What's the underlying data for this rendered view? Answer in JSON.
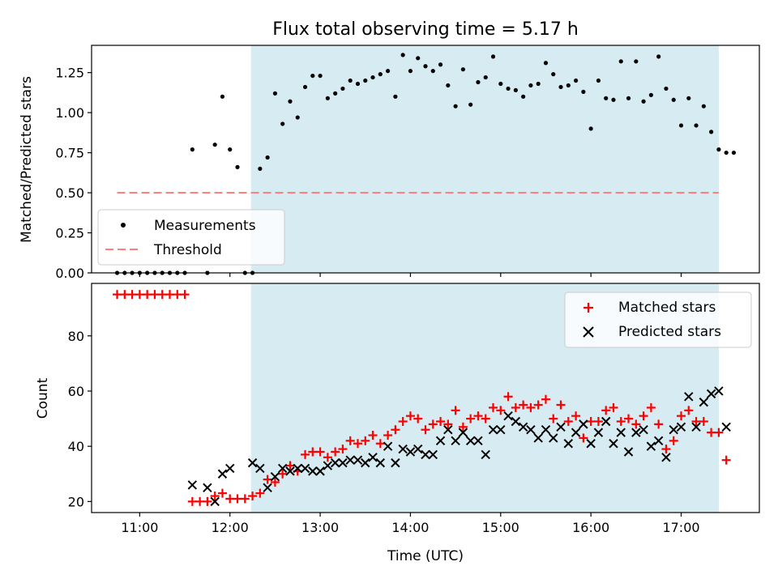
{
  "chart_data": [
    {
      "type": "scatter",
      "title": "Flux total observing time = 5.17 h",
      "xlabel": "",
      "ylabel": "Matched/Predicted stars",
      "xlim": [
        "10:28",
        "17:52"
      ],
      "ylim": [
        0,
        1.42
      ],
      "yticks": [
        0,
        0.25,
        0.5,
        0.75,
        1.0,
        1.25
      ],
      "ytick_labels": [
        "0.00",
        "0.25",
        "0.50",
        "0.75",
        "1.00",
        "1.25"
      ],
      "shaded_region": {
        "start": "12:14",
        "end": "17:25",
        "color": "#add8e6"
      },
      "legend": {
        "position": "lower-left",
        "entries": [
          "Measurements",
          "Threshold"
        ]
      },
      "series": [
        {
          "name": "Measurements",
          "color": "#000000",
          "marker": "dot",
          "points": [
            [
              "10:45",
              0
            ],
            [
              "10:50",
              0
            ],
            [
              "10:55",
              0
            ],
            [
              "11:00",
              0
            ],
            [
              "11:05",
              0
            ],
            [
              "11:10",
              0
            ],
            [
              "11:15",
              0
            ],
            [
              "11:20",
              0
            ],
            [
              "11:25",
              0
            ],
            [
              "11:30",
              0
            ],
            [
              "11:35",
              0.77
            ],
            [
              "11:45",
              0
            ],
            [
              "11:50",
              0.8
            ],
            [
              "11:55",
              1.1
            ],
            [
              "12:00",
              0.77
            ],
            [
              "12:05",
              0.66
            ],
            [
              "12:10",
              0
            ],
            [
              "12:15",
              0
            ],
            [
              "12:20",
              0.65
            ],
            [
              "12:25",
              0.72
            ],
            [
              "12:30",
              1.12
            ],
            [
              "12:35",
              0.93
            ],
            [
              "12:40",
              1.07
            ],
            [
              "12:45",
              0.97
            ],
            [
              "12:50",
              1.16
            ],
            [
              "12:55",
              1.23
            ],
            [
              "13:00",
              1.23
            ],
            [
              "13:05",
              1.09
            ],
            [
              "13:10",
              1.12
            ],
            [
              "13:15",
              1.15
            ],
            [
              "13:20",
              1.2
            ],
            [
              "13:25",
              1.18
            ],
            [
              "13:30",
              1.2
            ],
            [
              "13:35",
              1.22
            ],
            [
              "13:40",
              1.24
            ],
            [
              "13:45",
              1.26
            ],
            [
              "13:50",
              1.1
            ],
            [
              "13:55",
              1.36
            ],
            [
              "14:00",
              1.26
            ],
            [
              "14:05",
              1.34
            ],
            [
              "14:10",
              1.29
            ],
            [
              "14:15",
              1.26
            ],
            [
              "14:20",
              1.3
            ],
            [
              "14:25",
              1.17
            ],
            [
              "14:30",
              1.04
            ],
            [
              "14:35",
              1.27
            ],
            [
              "14:40",
              1.05
            ],
            [
              "14:45",
              1.19
            ],
            [
              "14:50",
              1.22
            ],
            [
              "14:55",
              1.35
            ],
            [
              "15:00",
              1.18
            ],
            [
              "15:05",
              1.15
            ],
            [
              "15:10",
              1.14
            ],
            [
              "15:15",
              1.1
            ],
            [
              "15:20",
              1.17
            ],
            [
              "15:25",
              1.18
            ],
            [
              "15:30",
              1.31
            ],
            [
              "15:35",
              1.24
            ],
            [
              "15:40",
              1.16
            ],
            [
              "15:45",
              1.17
            ],
            [
              "15:50",
              1.2
            ],
            [
              "15:55",
              1.13
            ],
            [
              "16:00",
              0.9
            ],
            [
              "16:05",
              1.2
            ],
            [
              "16:10",
              1.09
            ],
            [
              "16:15",
              1.08
            ],
            [
              "16:20",
              1.32
            ],
            [
              "16:25",
              1.09
            ],
            [
              "16:30",
              1.32
            ],
            [
              "16:35",
              1.07
            ],
            [
              "16:40",
              1.11
            ],
            [
              "16:45",
              1.35
            ],
            [
              "16:50",
              1.15
            ],
            [
              "16:55",
              1.08
            ],
            [
              "17:00",
              0.92
            ],
            [
              "17:05",
              1.09
            ],
            [
              "17:10",
              0.92
            ],
            [
              "17:15",
              1.04
            ],
            [
              "17:20",
              0.88
            ],
            [
              "17:25",
              0.77
            ],
            [
              "17:30",
              0.75
            ],
            [
              "17:35",
              0.75
            ]
          ]
        },
        {
          "name": "Threshold",
          "color": "#ff7f7f",
          "line_style": "dashed",
          "x": [
            "10:45",
            "17:25"
          ],
          "y": [
            0.5,
            0.5
          ]
        }
      ]
    },
    {
      "type": "scatter",
      "title": "",
      "xlabel": "Time (UTC)",
      "ylabel": "Count",
      "xlim": [
        "10:28",
        "17:52"
      ],
      "ylim": [
        16,
        99
      ],
      "yticks": [
        20,
        40,
        60,
        80
      ],
      "ytick_labels": [
        "20",
        "40",
        "60",
        "80"
      ],
      "xticks": [
        "11:00",
        "12:00",
        "13:00",
        "14:00",
        "15:00",
        "16:00",
        "17:00"
      ],
      "shaded_region": {
        "start": "12:14",
        "end": "17:25",
        "color": "#add8e6"
      },
      "legend": {
        "position": "top-right",
        "entries": [
          "Matched stars",
          "Predicted stars"
        ]
      },
      "series": [
        {
          "name": "Matched stars",
          "color": "#ff0000",
          "marker": "plus",
          "points": [
            [
              "10:45",
              95
            ],
            [
              "10:50",
              95
            ],
            [
              "10:55",
              95
            ],
            [
              "11:00",
              95
            ],
            [
              "11:05",
              95
            ],
            [
              "11:10",
              95
            ],
            [
              "11:15",
              95
            ],
            [
              "11:20",
              95
            ],
            [
              "11:25",
              95
            ],
            [
              "11:30",
              95
            ],
            [
              "11:35",
              20
            ],
            [
              "11:40",
              20
            ],
            [
              "11:45",
              20
            ],
            [
              "11:50",
              22
            ],
            [
              "11:55",
              23
            ],
            [
              "12:00",
              21
            ],
            [
              "12:05",
              21
            ],
            [
              "12:10",
              21
            ],
            [
              "12:15",
              22
            ],
            [
              "12:20",
              23
            ],
            [
              "12:25",
              28
            ],
            [
              "12:30",
              27
            ],
            [
              "12:35",
              30
            ],
            [
              "12:40",
              33
            ],
            [
              "12:45",
              31
            ],
            [
              "12:50",
              37
            ],
            [
              "12:55",
              38
            ],
            [
              "13:00",
              38
            ],
            [
              "13:05",
              36
            ],
            [
              "13:10",
              38
            ],
            [
              "13:15",
              39
            ],
            [
              "13:20",
              42
            ],
            [
              "13:25",
              41
            ],
            [
              "13:30",
              42
            ],
            [
              "13:35",
              44
            ],
            [
              "13:40",
              41
            ],
            [
              "13:45",
              44
            ],
            [
              "13:50",
              46
            ],
            [
              "13:55",
              49
            ],
            [
              "14:00",
              51
            ],
            [
              "14:05",
              50
            ],
            [
              "14:10",
              46
            ],
            [
              "14:15",
              48
            ],
            [
              "14:20",
              49
            ],
            [
              "14:25",
              48
            ],
            [
              "14:30",
              53
            ],
            [
              "14:35",
              47
            ],
            [
              "14:40",
              50
            ],
            [
              "14:45",
              51
            ],
            [
              "14:50",
              50
            ],
            [
              "14:55",
              54
            ],
            [
              "15:00",
              53
            ],
            [
              "15:05",
              58
            ],
            [
              "15:10",
              54
            ],
            [
              "15:15",
              55
            ],
            [
              "15:20",
              54
            ],
            [
              "15:25",
              55
            ],
            [
              "15:30",
              57
            ],
            [
              "15:35",
              50
            ],
            [
              "15:40",
              55
            ],
            [
              "15:45",
              49
            ],
            [
              "15:50",
              51
            ],
            [
              "15:55",
              43
            ],
            [
              "16:00",
              49
            ],
            [
              "16:05",
              49
            ],
            [
              "16:10",
              53
            ],
            [
              "16:15",
              54
            ],
            [
              "16:20",
              49
            ],
            [
              "16:25",
              50
            ],
            [
              "16:30",
              48
            ],
            [
              "16:35",
              51
            ],
            [
              "16:40",
              54
            ],
            [
              "16:45",
              48
            ],
            [
              "16:50",
              39
            ],
            [
              "16:55",
              42
            ],
            [
              "17:00",
              51
            ],
            [
              "17:05",
              53
            ],
            [
              "17:10",
              49
            ],
            [
              "17:15",
              49
            ],
            [
              "17:20",
              45
            ],
            [
              "17:25",
              45
            ],
            [
              "17:30",
              35
            ]
          ]
        },
        {
          "name": "Predicted stars",
          "color": "#000000",
          "marker": "x",
          "points": [
            [
              "11:35",
              26
            ],
            [
              "11:45",
              25
            ],
            [
              "11:50",
              20
            ],
            [
              "11:55",
              30
            ],
            [
              "12:00",
              32
            ],
            [
              "12:15",
              34
            ],
            [
              "12:20",
              32
            ],
            [
              "12:25",
              25
            ],
            [
              "12:30",
              29
            ],
            [
              "12:35",
              32
            ],
            [
              "12:40",
              31
            ],
            [
              "12:45",
              32
            ],
            [
              "12:50",
              32
            ],
            [
              "12:55",
              31
            ],
            [
              "13:00",
              31
            ],
            [
              "13:05",
              33
            ],
            [
              "13:10",
              34
            ],
            [
              "13:15",
              34
            ],
            [
              "13:20",
              35
            ],
            [
              "13:25",
              35
            ],
            [
              "13:30",
              34
            ],
            [
              "13:35",
              36
            ],
            [
              "13:40",
              34
            ],
            [
              "13:45",
              40
            ],
            [
              "13:50",
              34
            ],
            [
              "13:55",
              39
            ],
            [
              "14:00",
              38
            ],
            [
              "14:05",
              39
            ],
            [
              "14:10",
              37
            ],
            [
              "14:15",
              37
            ],
            [
              "14:20",
              42
            ],
            [
              "14:25",
              46
            ],
            [
              "14:30",
              42
            ],
            [
              "14:35",
              45
            ],
            [
              "14:40",
              42
            ],
            [
              "14:45",
              42
            ],
            [
              "14:50",
              37
            ],
            [
              "14:55",
              46
            ],
            [
              "15:00",
              46
            ],
            [
              "15:05",
              51
            ],
            [
              "15:10",
              49
            ],
            [
              "15:15",
              47
            ],
            [
              "15:20",
              46
            ],
            [
              "15:25",
              43
            ],
            [
              "15:30",
              46
            ],
            [
              "15:35",
              43
            ],
            [
              "15:40",
              47
            ],
            [
              "15:45",
              41
            ],
            [
              "15:50",
              45
            ],
            [
              "15:55",
              48
            ],
            [
              "16:00",
              41
            ],
            [
              "16:05",
              45
            ],
            [
              "16:10",
              49
            ],
            [
              "16:15",
              41
            ],
            [
              "16:20",
              45
            ],
            [
              "16:25",
              38
            ],
            [
              "16:30",
              45
            ],
            [
              "16:35",
              46
            ],
            [
              "16:40",
              40
            ],
            [
              "16:45",
              42
            ],
            [
              "16:50",
              36
            ],
            [
              "16:55",
              46
            ],
            [
              "17:00",
              47
            ],
            [
              "17:05",
              58
            ],
            [
              "17:10",
              47
            ],
            [
              "17:15",
              56
            ],
            [
              "17:20",
              59
            ],
            [
              "17:25",
              60
            ],
            [
              "17:30",
              47
            ]
          ]
        }
      ]
    }
  ]
}
